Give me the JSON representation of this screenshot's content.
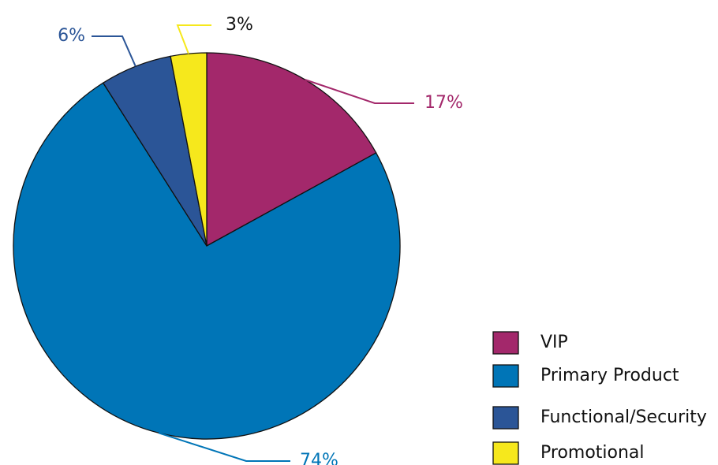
{
  "chart_data": {
    "type": "pie",
    "categories": [
      "VIP",
      "Primary Product",
      "Functional/Security",
      "Promotional"
    ],
    "values": [
      17,
      74,
      6,
      3
    ],
    "value_labels": [
      "17%",
      "74%",
      "6%",
      "3%"
    ],
    "colors": [
      "#a3286b",
      "#0075b7",
      "#2b5597",
      "#f6e81c"
    ],
    "legend": "lower right"
  }
}
